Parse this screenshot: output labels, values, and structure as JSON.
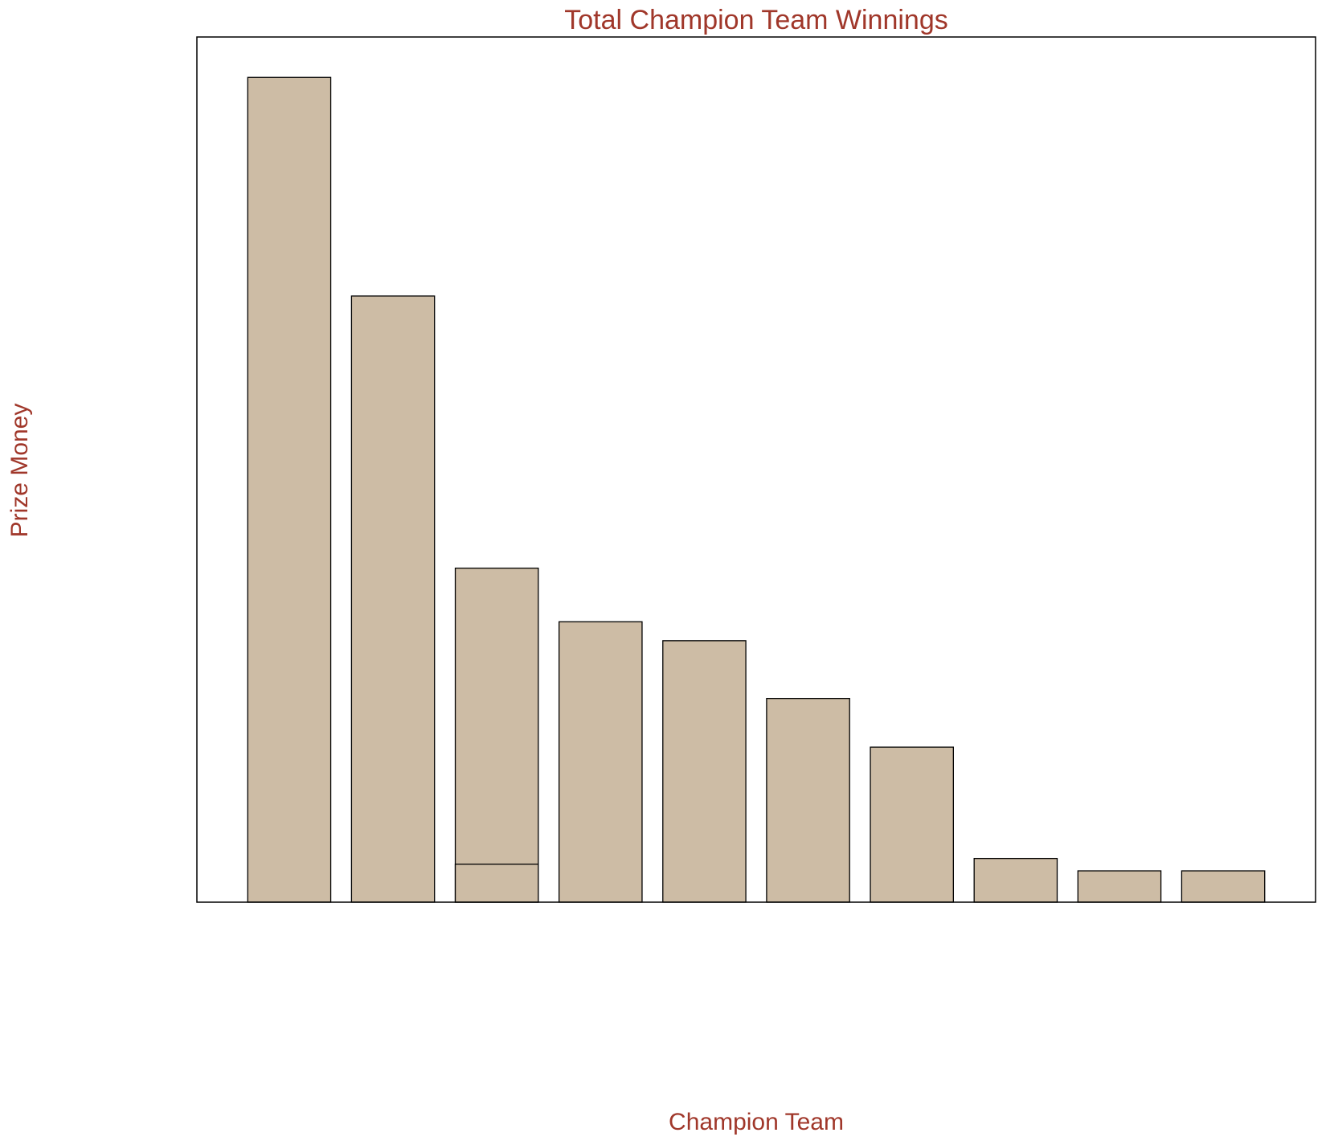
{
  "chart_data": {
    "type": "bar",
    "title": "Total Champion Team Winnings",
    "xlabel": "Champion Team",
    "ylabel": "Prize Money",
    "categories": [
      null,
      null,
      null,
      null,
      null,
      null,
      null,
      null,
      null,
      null
    ],
    "series": [
      {
        "color": "#cdbca5",
        "values": [
          100,
          73.5,
          40.5,
          34,
          31.7,
          24.7,
          18.8,
          5.3,
          3.8,
          3.8
        ]
      },
      {
        "color": "#cdbca5",
        "values": [
          null,
          null,
          4.6,
          null,
          null,
          null,
          null,
          null,
          null,
          null
        ]
      }
    ],
    "ylim": [
      0,
      104.9
    ]
  }
}
